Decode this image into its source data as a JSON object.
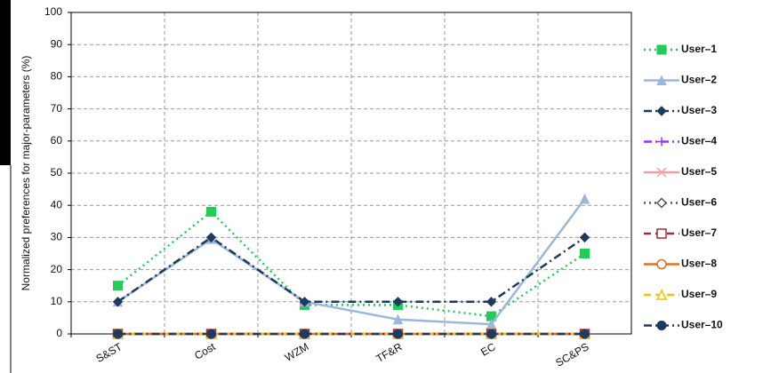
{
  "chart_data": {
    "type": "line",
    "y_label": "Normalized  preferences for major-parameters (%)",
    "categories": [
      "S&ST",
      "Cost",
      "WZM",
      "TF&R",
      "EC",
      "SC&PS"
    ],
    "ylim": [
      0,
      100
    ],
    "yticks": [
      0,
      10,
      20,
      30,
      40,
      50,
      60,
      70,
      80,
      90,
      100
    ],
    "grid": true,
    "legend": "right",
    "series": [
      {
        "name": "User–1",
        "color": "#22cc55",
        "dash": "dot",
        "marker": "square",
        "values": [
          15,
          38,
          9,
          9,
          5.5,
          25
        ]
      },
      {
        "name": "User–2",
        "color": "#9db7dc",
        "dash": "solid",
        "marker": "triangle",
        "values": [
          10,
          29.5,
          10,
          4.5,
          3,
          42
        ]
      },
      {
        "name": "User–3",
        "color": "#1f3a5f",
        "dash": "dashdot",
        "marker": "diamond",
        "values": [
          10,
          30,
          10,
          10,
          10,
          30
        ]
      },
      {
        "name": "User–4",
        "color": "#9933ff",
        "dash": "dashdot",
        "marker": "plus",
        "values": [
          0,
          0,
          0,
          0,
          0,
          0
        ]
      },
      {
        "name": "User–5",
        "color": "#f0a0a0",
        "dash": "solid",
        "marker": "cross",
        "values": [
          0,
          0,
          0,
          0,
          0,
          0
        ]
      },
      {
        "name": "User–6",
        "color": "#555555",
        "dash": "dot",
        "marker": "opendiamond",
        "values": [
          0,
          0,
          0,
          0,
          0,
          0
        ]
      },
      {
        "name": "User–7",
        "color": "#a03030",
        "dash": "dash",
        "marker": "opensquare",
        "values": [
          0,
          0,
          0,
          0,
          0,
          0
        ]
      },
      {
        "name": "User–8",
        "color": "#e07020",
        "dash": "solid",
        "marker": "opencircle",
        "values": [
          0,
          0,
          0,
          0,
          0,
          0
        ]
      },
      {
        "name": "User–9",
        "color": "#ffc000",
        "dash": "dash",
        "marker": "opentriangle",
        "values": [
          0,
          0,
          0,
          0,
          0,
          0
        ]
      },
      {
        "name": "User–10",
        "color": "#1f3a5f",
        "dash": "dashdot",
        "marker": "circle",
        "values": [
          0,
          0,
          0,
          0,
          0,
          0
        ]
      }
    ]
  }
}
